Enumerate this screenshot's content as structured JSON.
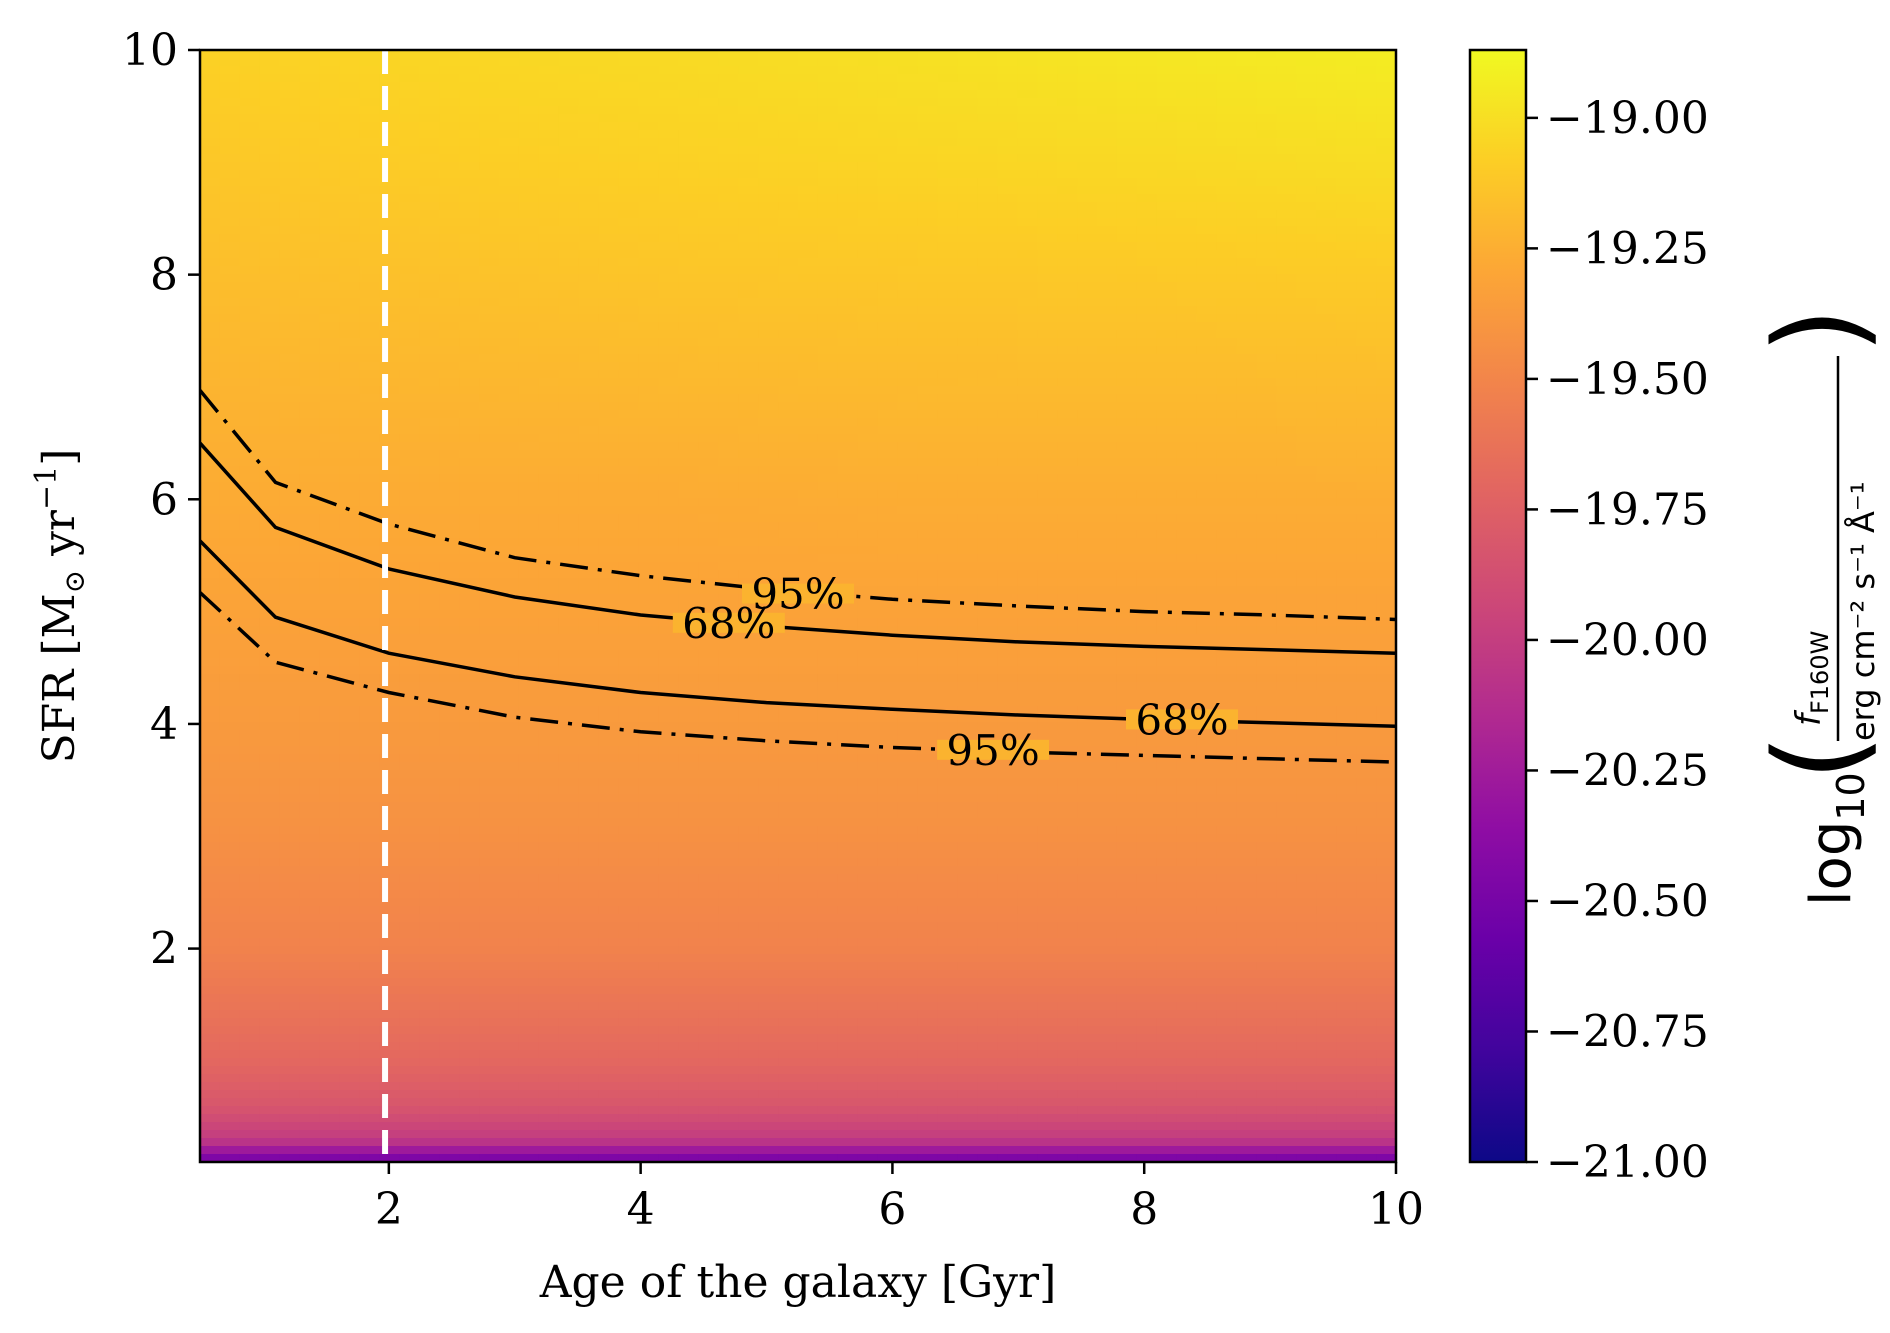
{
  "chart_data": {
    "type": "heatmap",
    "xlabel": "Age of the galaxy [Gyr]",
    "ylabel": {
      "prefix": "SFR [M",
      "sun_symbol": "⊙",
      "units": " yr",
      "exponent": "−1",
      "suffix": "]"
    },
    "xlim": [
      0.5,
      10
    ],
    "ylim": [
      0.1,
      10
    ],
    "x_ticks": [
      {
        "value": 2,
        "label": "2"
      },
      {
        "value": 4,
        "label": "4"
      },
      {
        "value": 6,
        "label": "6"
      },
      {
        "value": 8,
        "label": "8"
      },
      {
        "value": 10,
        "label": "10"
      }
    ],
    "y_ticks": [
      {
        "value": 2,
        "label": "2"
      },
      {
        "value": 4,
        "label": "4"
      },
      {
        "value": 6,
        "label": "6"
      },
      {
        "value": 8,
        "label": "8"
      },
      {
        "value": 10,
        "label": "10"
      }
    ],
    "colormap": "plasma",
    "colorbar": {
      "range": [
        -21.0,
        -18.87
      ],
      "ticks": [
        {
          "value": -19.0,
          "label": "−19.00"
        },
        {
          "value": -19.25,
          "label": "−19.25"
        },
        {
          "value": -19.5,
          "label": "−19.50"
        },
        {
          "value": -19.75,
          "label": "−19.75"
        },
        {
          "value": -20.0,
          "label": "−20.00"
        },
        {
          "value": -20.25,
          "label": "−20.25"
        },
        {
          "value": -20.5,
          "label": "−20.50"
        },
        {
          "value": -20.75,
          "label": "−20.75"
        },
        {
          "value": -21.0,
          "label": "−21.00"
        }
      ],
      "label": {
        "log": "log",
        "log_sub": "10",
        "numerator_f": "f",
        "numerator_sub": "F160W",
        "denominator": "erg cm⁻² s⁻¹ Å⁻¹"
      }
    },
    "heat_field": {
      "x": [
        0.5,
        2.4,
        4.3,
        6.2,
        8.1,
        10
      ],
      "y": [
        10,
        9,
        8,
        7,
        6,
        5,
        4,
        3,
        2,
        1,
        0.6,
        0.3,
        0.1
      ],
      "values": [
        [
          -19.07,
          -19.04,
          -19.02,
          -18.99,
          -18.96,
          -18.93
        ],
        [
          -19.12,
          -19.09,
          -19.07,
          -19.05,
          -19.03,
          -19.01
        ],
        [
          -19.17,
          -19.15,
          -19.13,
          -19.12,
          -19.11,
          -19.1
        ],
        [
          -19.22,
          -19.21,
          -19.2,
          -19.19,
          -19.19,
          -19.18
        ],
        [
          -19.27,
          -19.27,
          -19.27,
          -19.26,
          -19.26,
          -19.26
        ],
        [
          -19.32,
          -19.32,
          -19.32,
          -19.32,
          -19.32,
          -19.32
        ],
        [
          -19.37,
          -19.37,
          -19.37,
          -19.37,
          -19.37,
          -19.37
        ],
        [
          -19.43,
          -19.43,
          -19.43,
          -19.43,
          -19.43,
          -19.43
        ],
        [
          -19.52,
          -19.52,
          -19.52,
          -19.52,
          -19.52,
          -19.52
        ],
        [
          -19.7,
          -19.7,
          -19.7,
          -19.7,
          -19.7,
          -19.7
        ],
        [
          -19.82,
          -19.82,
          -19.82,
          -19.82,
          -19.82,
          -19.82
        ],
        [
          -20.02,
          -20.02,
          -20.02,
          -20.02,
          -20.02,
          -20.02
        ],
        [
          -20.55,
          -20.55,
          -20.55,
          -20.55,
          -20.55,
          -20.55
        ]
      ]
    },
    "vline": {
      "x": 1.97,
      "style": "dashed",
      "color": "#ffffff"
    },
    "contours": [
      {
        "level": "95%",
        "bound": "upper",
        "style": "dashdot",
        "x": [
          0.5,
          1.1,
          2,
          3,
          4,
          5,
          6,
          7,
          8,
          9,
          10
        ],
        "y": [
          6.97,
          6.15,
          5.78,
          5.48,
          5.32,
          5.2,
          5.11,
          5.05,
          5.0,
          4.97,
          4.93
        ]
      },
      {
        "level": "68%",
        "bound": "upper",
        "style": "solid",
        "x": [
          0.5,
          1.1,
          2,
          3,
          4,
          5,
          6,
          7,
          8,
          9,
          10
        ],
        "y": [
          6.5,
          5.75,
          5.38,
          5.13,
          4.97,
          4.87,
          4.79,
          4.73,
          4.69,
          4.66,
          4.63
        ]
      },
      {
        "level": "68%",
        "bound": "lower",
        "style": "solid",
        "x": [
          0.5,
          1.1,
          2,
          3,
          4,
          5,
          6,
          7,
          8,
          9,
          10
        ],
        "y": [
          5.63,
          4.95,
          4.63,
          4.42,
          4.28,
          4.19,
          4.13,
          4.08,
          4.04,
          4.01,
          3.98
        ]
      },
      {
        "level": "95%",
        "bound": "lower",
        "style": "dashdot",
        "x": [
          0.5,
          1.1,
          2,
          3,
          4,
          5,
          6,
          7,
          8,
          9,
          10
        ],
        "y": [
          5.17,
          4.55,
          4.28,
          4.06,
          3.93,
          3.85,
          3.79,
          3.75,
          3.72,
          3.69,
          3.66
        ]
      }
    ],
    "contour_labels": [
      {
        "text": "95%",
        "x": 5.25,
        "y": 5.16
      },
      {
        "text": "68%",
        "x": 4.7,
        "y": 4.9
      },
      {
        "text": "68%",
        "x": 8.3,
        "y": 4.04
      },
      {
        "text": "95%",
        "x": 6.8,
        "y": 3.77
      }
    ]
  }
}
